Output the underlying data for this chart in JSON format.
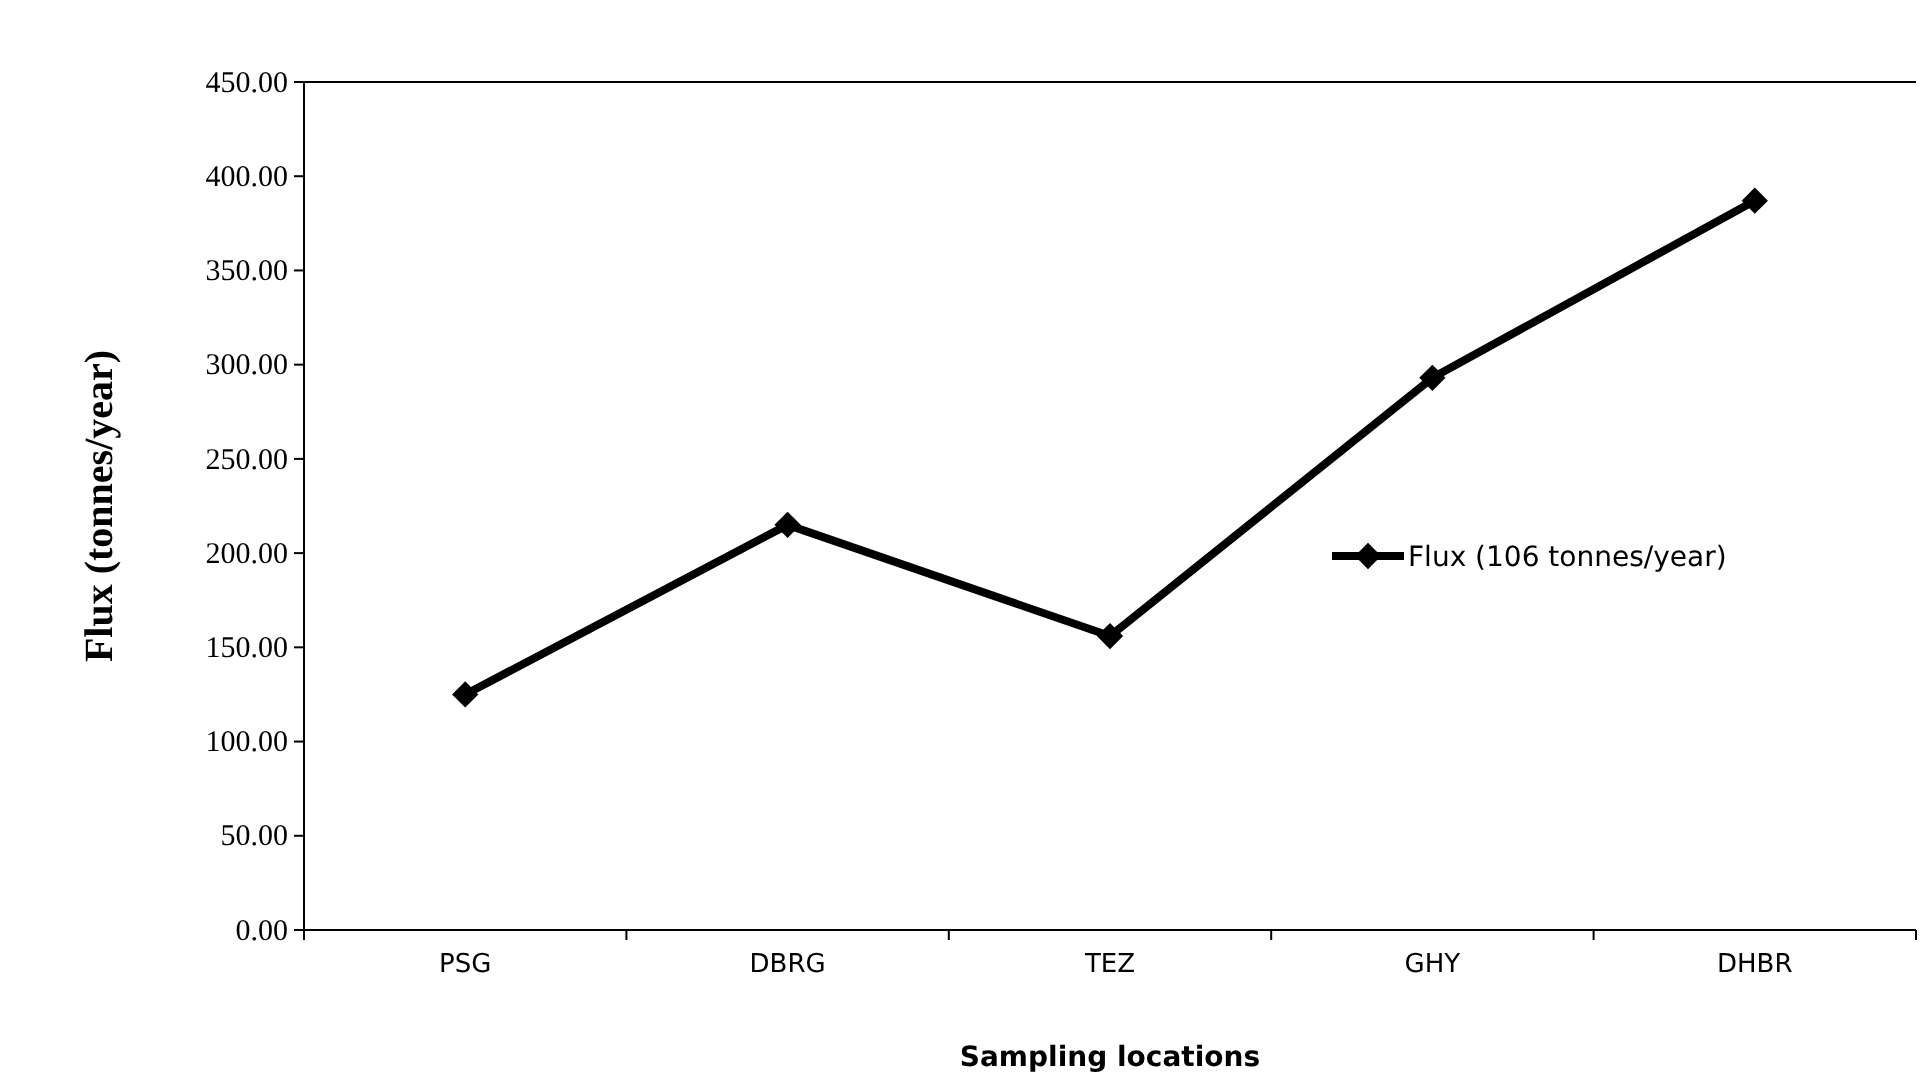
{
  "chart_data": {
    "type": "line",
    "xlabel": "Sampling locations",
    "ylabel": "Flux  (tonnes/year)",
    "categories": [
      "PSG",
      "DBRG",
      "TEZ",
      "GHY",
      "DHBR"
    ],
    "series": [
      {
        "name": "Flux (106 tonnes/year)",
        "color": "#000000",
        "values": [
          125,
          215,
          156,
          293,
          387
        ]
      }
    ],
    "ylim": [
      0,
      450
    ],
    "yticks": [
      {
        "value": 0,
        "label": "0.00"
      },
      {
        "value": 50,
        "label": "50.00"
      },
      {
        "value": 100,
        "label": "100.00"
      },
      {
        "value": 150,
        "label": "150.00"
      },
      {
        "value": 200,
        "label": "200.00"
      },
      {
        "value": 250,
        "label": "250.00"
      },
      {
        "value": 300,
        "label": "300.00"
      },
      {
        "value": 350,
        "label": "350.00"
      },
      {
        "value": 400,
        "label": "400.00"
      },
      {
        "value": 450,
        "label": "450.00"
      }
    ],
    "grid": false,
    "legend": "right",
    "marker": "diamond",
    "line_style": "solid"
  }
}
